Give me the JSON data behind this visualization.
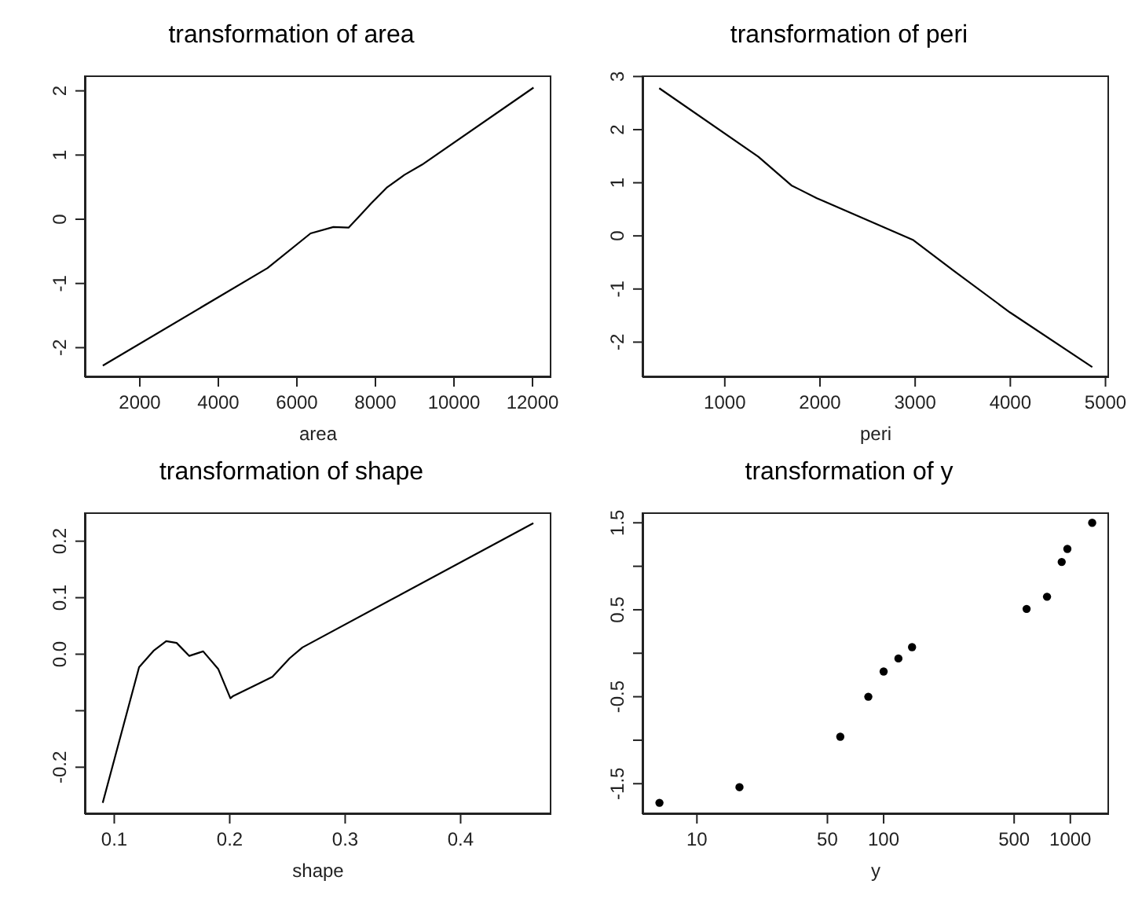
{
  "chart_data": [
    {
      "type": "line",
      "title": "transformation of area",
      "xlabel": "area",
      "color": "#000000",
      "marker": "none",
      "line_style": "solid",
      "x": [
        1058,
        5252,
        6348,
        6929,
        7316,
        7639,
        7897,
        8284,
        8735,
        9187,
        12026
      ],
      "values": [
        -2.28,
        -0.76,
        -0.22,
        -0.12,
        -0.13,
        0.08,
        0.25,
        0.49,
        0.69,
        0.85,
        2.05
      ],
      "xlim": [
        600,
        12480
      ],
      "xticks": [
        2000,
        4000,
        6000,
        8000,
        10000,
        12000
      ],
      "ylim": [
        -2.46,
        2.24
      ],
      "yticks": [
        -2,
        -1,
        0,
        1,
        2
      ]
    },
    {
      "type": "line",
      "title": "transformation of peri",
      "xlabel": "peri",
      "color": "#000000",
      "marker": "none",
      "line_style": "solid",
      "x": [
        311,
        1352,
        1700,
        1967,
        2981,
        3409,
        3996,
        4861
      ],
      "values": [
        2.78,
        1.49,
        0.95,
        0.71,
        -0.08,
        -0.66,
        -1.44,
        -2.47
      ],
      "xlim": [
        135,
        5037
      ],
      "xticks": [
        1000,
        2000,
        3000,
        4000,
        5000
      ],
      "ylim": [
        -2.66,
        3.02
      ],
      "yticks": [
        -2,
        -1,
        0,
        1,
        2,
        3
      ]
    },
    {
      "type": "line",
      "title": "transformation of shape",
      "xlabel": "shape",
      "color": "#000000",
      "marker": "none",
      "line_style": "solid",
      "x": [
        0.09,
        0.1215,
        0.134,
        0.145,
        0.154,
        0.165,
        0.177,
        0.19,
        0.2006,
        0.203,
        0.226,
        0.237,
        0.252,
        0.263,
        0.463
      ],
      "values": [
        -0.263,
        -0.023,
        0.006,
        0.023,
        0.02,
        -0.003,
        0.005,
        -0.026,
        -0.078,
        -0.074,
        -0.051,
        -0.04,
        -0.007,
        0.012,
        0.232
      ],
      "xlim": [
        0.0745,
        0.4786
      ],
      "xticks": [
        0.1,
        0.2,
        0.3,
        0.4
      ],
      "ylim": [
        -0.283,
        0.251
      ],
      "yticks": [
        {
          "value": -0.2,
          "label": "-0.2"
        },
        {
          "value": -0.1,
          "label": null
        },
        {
          "value": 0,
          "label": "0.0"
        },
        0.1,
        0.2
      ]
    },
    {
      "type": "scatter",
      "title": "transformation of y",
      "xlabel": "y",
      "color": "#000000",
      "marker": "circle",
      "log": "x",
      "x": [
        6.3,
        16.9,
        58.6,
        82.8,
        100,
        120,
        142,
        583,
        750,
        899,
        964,
        1309
      ],
      "values": [
        -1.72,
        -1.54,
        -0.96,
        -0.5,
        -0.21,
        -0.06,
        0.07,
        0.51,
        0.65,
        1.05,
        1.2,
        1.5
      ],
      "xlim": [
        5.11,
        1611
      ],
      "xticks": [
        10,
        50,
        100,
        500,
        1000
      ],
      "ylim": [
        -1.85,
        1.62
      ],
      "yticks": [
        {
          "value": -1.5,
          "label": "-1.5"
        },
        {
          "value": -1,
          "label": null
        },
        {
          "value": -0.5,
          "label": "-0.5"
        },
        {
          "value": 0,
          "label": null
        },
        {
          "value": 0.5,
          "label": "0.5"
        },
        {
          "value": 1,
          "label": null
        },
        {
          "value": 1.5,
          "label": "1.5"
        }
      ]
    }
  ]
}
